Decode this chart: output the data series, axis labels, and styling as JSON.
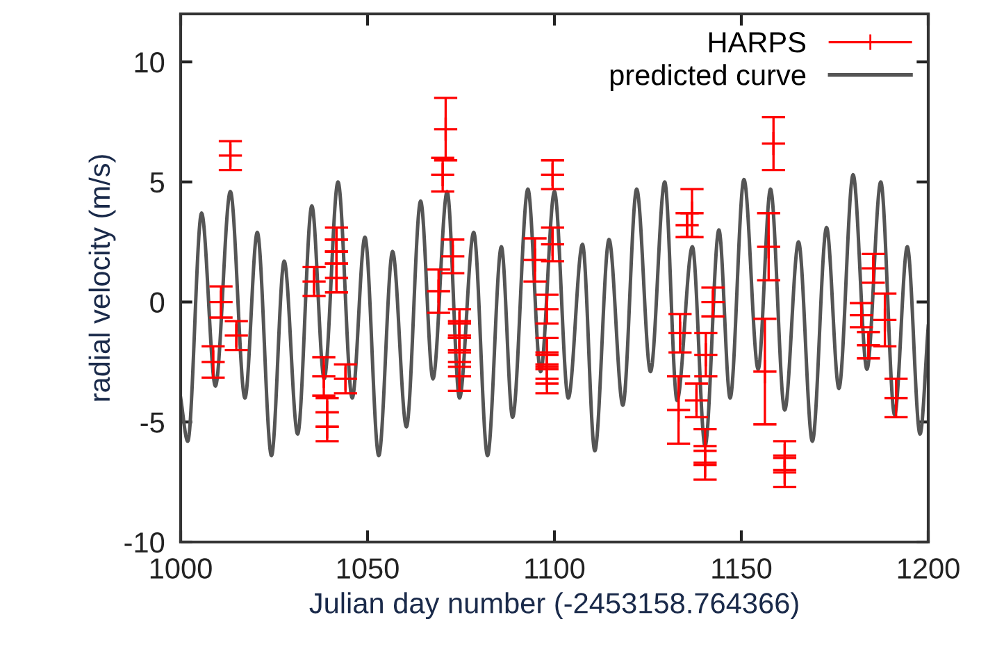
{
  "chart_data": {
    "type": "line",
    "xlabel": "Julian day number (-2453158.764366)",
    "ylabel": "radial velocity (m/s)",
    "xlim": [
      1000,
      1200
    ],
    "ylim": [
      -10,
      12
    ],
    "xticks": [
      1000,
      1050,
      1100,
      1150,
      1200
    ],
    "yticks": [
      -10,
      -5,
      0,
      5,
      10
    ],
    "grid": false,
    "legend": "top right",
    "series": [
      {
        "name": "HARPS",
        "type": "scatter",
        "color": "#ff0000",
        "marker": "cross",
        "x": [
          1013.3,
          1010.8,
          1008.7,
          1014.9,
          1035.7,
          1041.7,
          1041.7,
          1041.7,
          1038.3,
          1039.2,
          1039.2,
          1044.1,
          1070.9,
          1070.1,
          1072.8,
          1069.0,
          1074.6,
          1074.6,
          1074.6,
          1074.6,
          1099.5,
          1099.5,
          1094.8,
          1098.0,
          1098.0,
          1098.0,
          1098.0,
          1136.8,
          1135.5,
          1133.6,
          1133.2,
          1142.4,
          1140.5,
          1138.0,
          1140.3,
          1140.3,
          1158.6,
          1157.3,
          1156.3,
          1161.6,
          1161.6,
          1185.3,
          1188.4,
          1182.1,
          1184.0,
          1191.4
        ],
        "values": [
          6.1,
          0.0,
          -2.5,
          -1.4,
          0.85,
          2.6,
          2.1,
          1.0,
          -3.1,
          -4.6,
          -5.2,
          -3.2,
          7.2,
          5.3,
          1.9,
          0.45,
          -0.9,
          -1.4,
          -2.1,
          -3.1,
          5.3,
          2.4,
          1.75,
          -0.3,
          -2.1,
          -2.8,
          -3.2,
          3.7,
          3.2,
          -1.3,
          -4.5,
          0.0,
          -2.2,
          -4.1,
          -6.0,
          -6.8,
          6.6,
          2.3,
          -2.9,
          -6.4,
          -7.1,
          1.4,
          -0.75,
          -0.55,
          -1.8,
          -4.0
        ],
        "errors": [
          0.6,
          0.65,
          0.65,
          0.6,
          0.6,
          0.5,
          0.5,
          0.6,
          0.8,
          0.6,
          0.6,
          0.6,
          1.3,
          0.7,
          0.7,
          0.9,
          0.6,
          0.6,
          0.6,
          0.6,
          0.6,
          0.7,
          0.9,
          0.6,
          0.6,
          0.6,
          0.6,
          1.0,
          0.5,
          0.8,
          1.4,
          0.6,
          0.9,
          0.7,
          0.7,
          0.6,
          1.1,
          1.4,
          2.2,
          0.6,
          0.6,
          0.6,
          1.1,
          0.5,
          0.55,
          0.8
        ]
      },
      {
        "name": "predicted curve",
        "color": "#555555",
        "marker": "none",
        "line_style": "solid",
        "x": [
          1000.0,
          1001.9,
          1005.6,
          1009.3,
          1013.3,
          1017.2,
          1020.5,
          1024.3,
          1027.7,
          1031.3,
          1035.1,
          1038.4,
          1042.1,
          1045.9,
          1049.3,
          1053.0,
          1056.7,
          1060.4,
          1064.2,
          1067.5,
          1071.3,
          1074.6,
          1078.4,
          1082.1,
          1085.8,
          1088.8,
          1092.9,
          1096.3,
          1100.0,
          1103.7,
          1107.5,
          1110.8,
          1114.6,
          1118.3,
          1122.0,
          1125.7,
          1129.5,
          1132.8,
          1136.9,
          1140.3,
          1144.0,
          1147.0,
          1150.7,
          1154.5,
          1157.8,
          1161.6,
          1165.3,
          1169.0,
          1172.8,
          1176.1,
          1179.9,
          1183.6,
          1187.3,
          1191.0,
          1194.4,
          1197.8,
          1200.0
        ],
        "values": [
          -4.0,
          -5.8,
          3.7,
          -3.5,
          4.6,
          -4.0,
          2.9,
          -6.4,
          1.7,
          -5.5,
          4.0,
          -3.2,
          5.0,
          -4.0,
          2.7,
          -6.4,
          2.1,
          -5.2,
          4.2,
          -3.2,
          4.6,
          -4.0,
          2.9,
          -6.4,
          2.3,
          -4.8,
          4.7,
          -2.9,
          4.6,
          -4.0,
          2.4,
          -6.2,
          2.6,
          -4.3,
          4.7,
          -2.9,
          5.0,
          -4.1,
          2.3,
          -6.0,
          3.0,
          -4.0,
          5.1,
          -2.8,
          4.7,
          -4.5,
          2.5,
          -5.8,
          3.1,
          -3.6,
          5.3,
          -2.8,
          5.0,
          -4.7,
          2.3,
          -5.5,
          -1.0
        ]
      }
    ]
  }
}
